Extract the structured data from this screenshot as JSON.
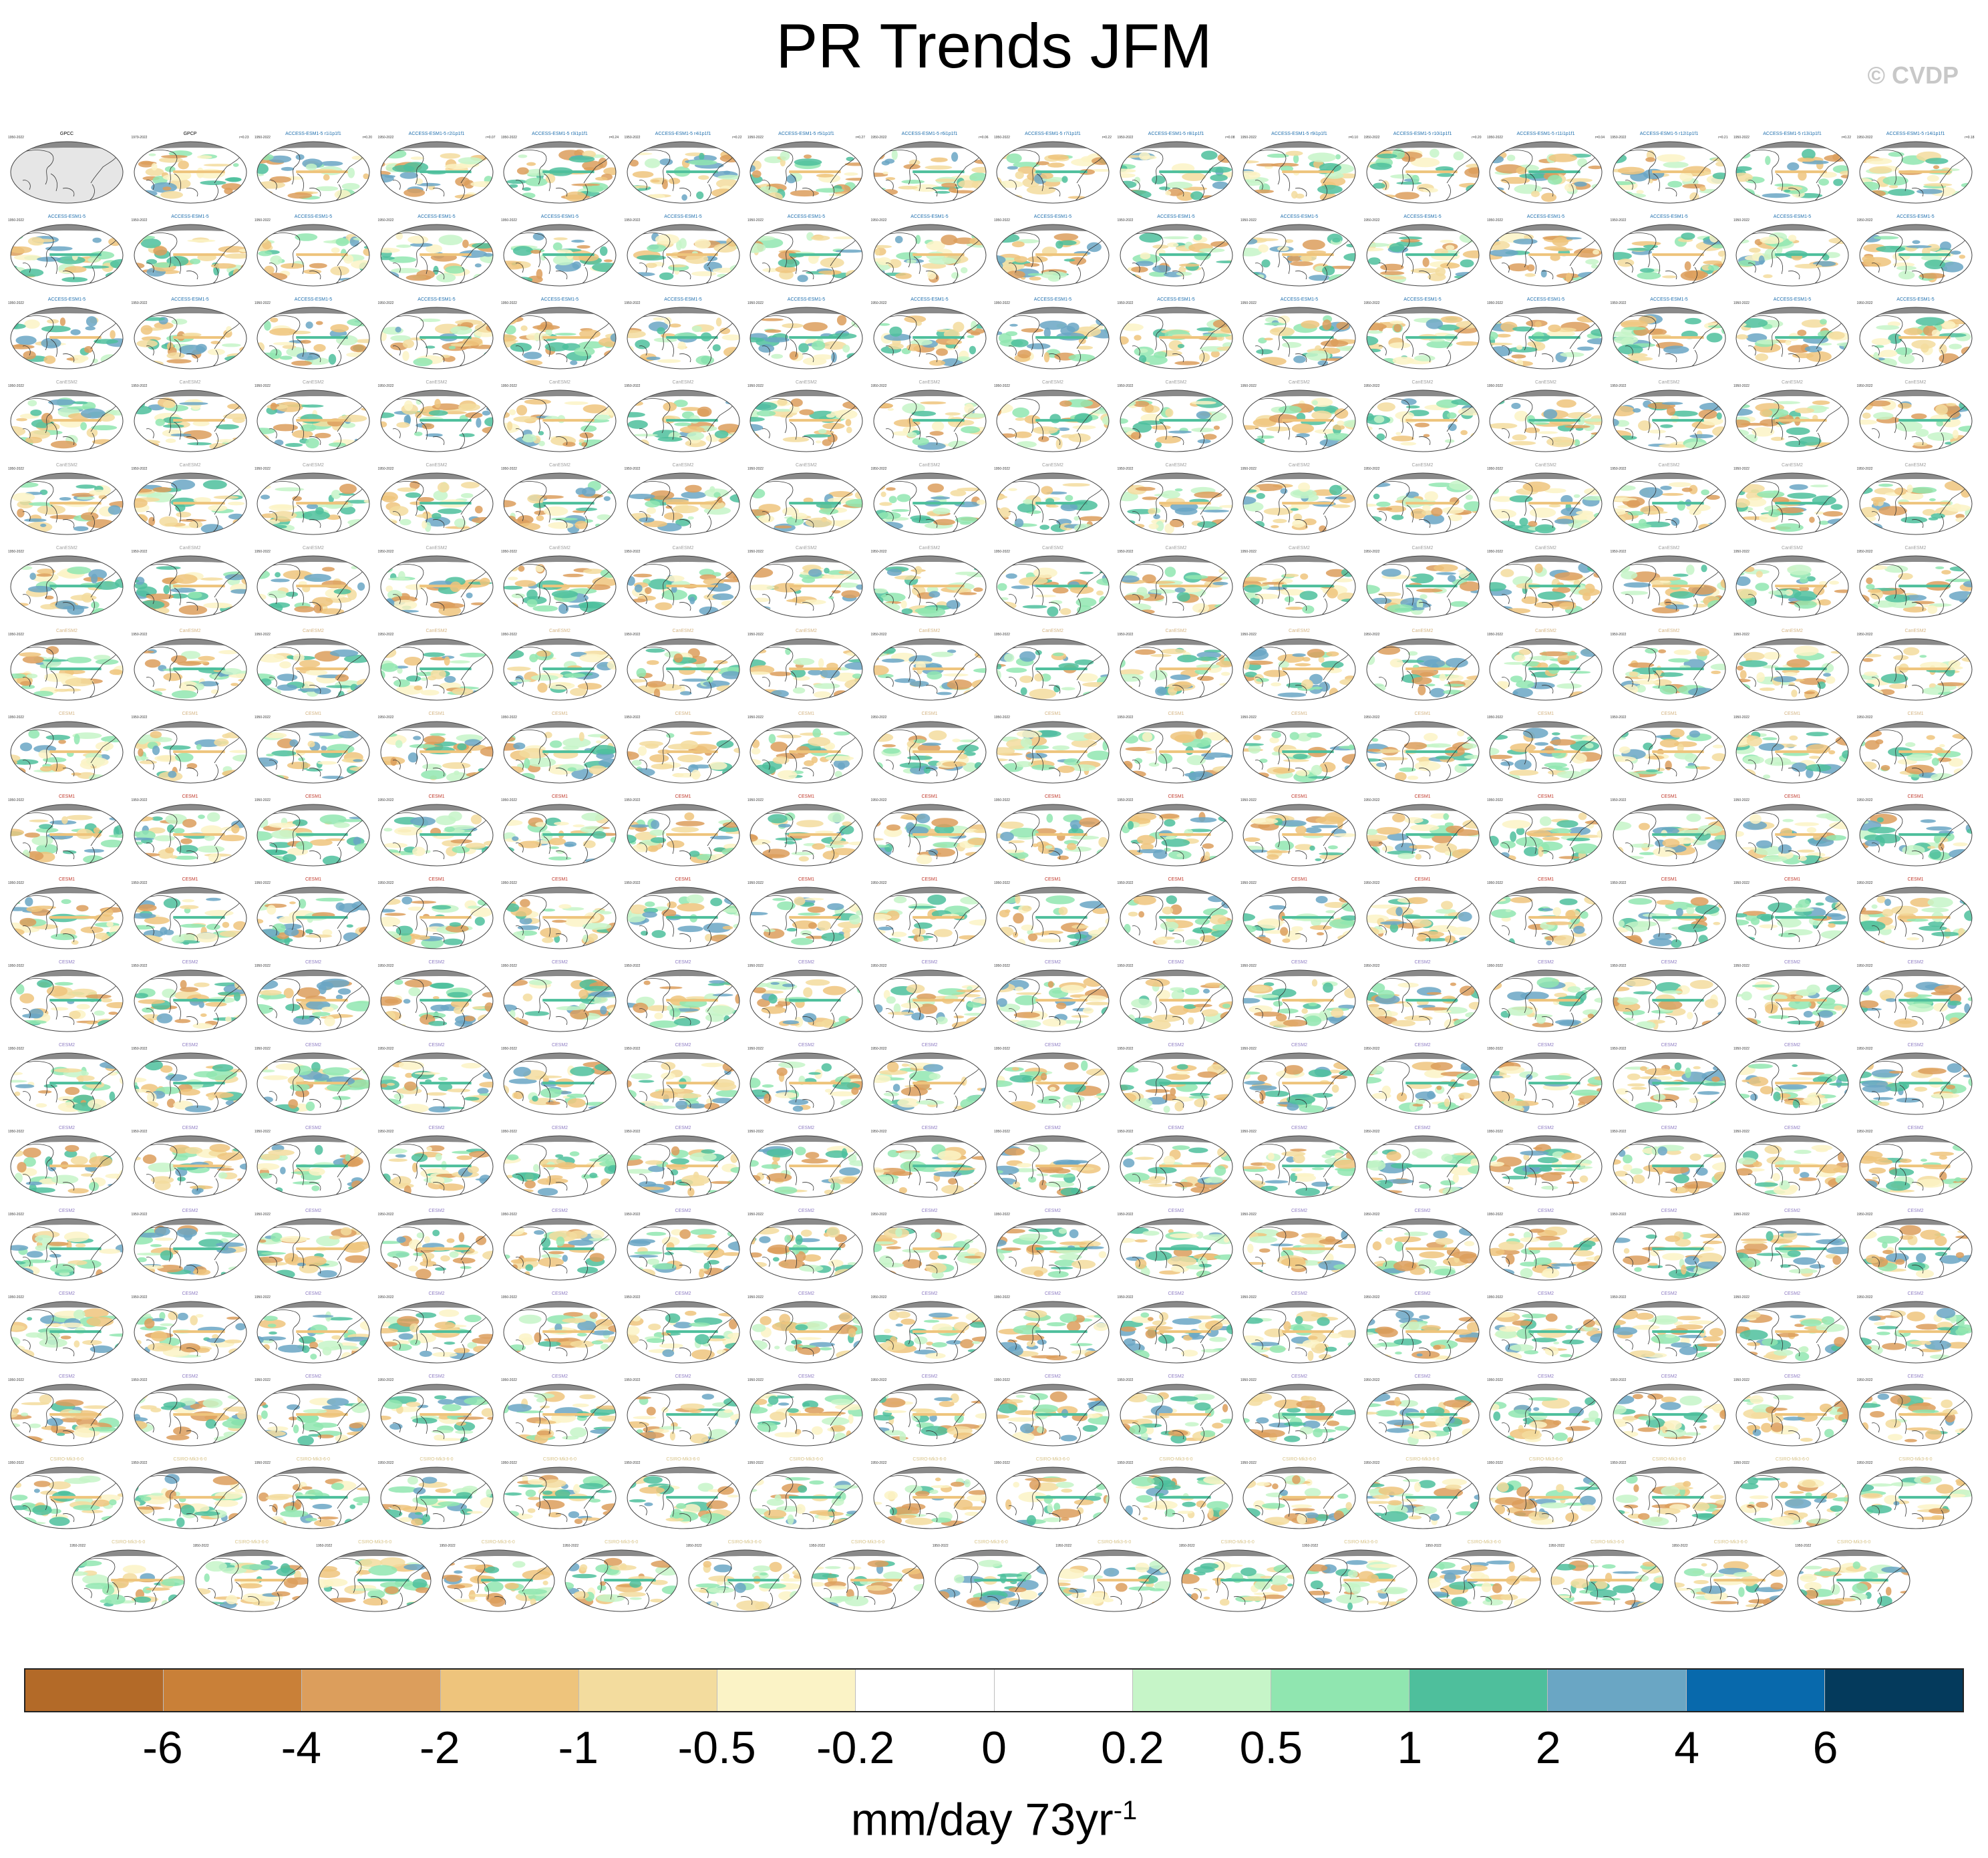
{
  "title": "PR Trends JFM",
  "copyright": "© CVDP",
  "colorbar": {
    "colors": [
      "#b36a28",
      "#c98038",
      "#dc9e5c",
      "#eec47c",
      "#f3dc9e",
      "#fbf3c6",
      "#ffffff",
      "#ffffff",
      "#c6f5c8",
      "#90e6b0",
      "#4ebf9c",
      "#6aa6c4",
      "#0869ac",
      "#043a5c"
    ],
    "labels": [
      "-6",
      "-4",
      "-2",
      "-1",
      "-0.5",
      "-0.2",
      "0",
      "0.2",
      "0.5",
      "1",
      "2",
      "4",
      "6"
    ]
  },
  "units": {
    "text": "mm/day 73yr",
    "superscript": "-1"
  },
  "panel_years": "1950-2022",
  "panels": [
    {
      "title": "GPCC",
      "years": "1950-2022",
      "value": "",
      "color": "#000000",
      "empty": true
    },
    {
      "title": "GPCP",
      "years": "1979-2022",
      "value": "r=0.23",
      "color": "#000000"
    },
    {
      "title": "ACCESS-ESM1-5 r1i1p1f1",
      "value": "r=0.20",
      "color": "#1f6fae"
    },
    {
      "title": "ACCESS-ESM1-5 r2i1p1f1",
      "value": "r=0.07",
      "color": "#1f6fae"
    },
    {
      "title": "ACCESS-ESM1-5 r3i1p1f1",
      "value": "r=0.24",
      "color": "#1f6fae"
    },
    {
      "title": "ACCESS-ESM1-5 r4i1p1f1",
      "value": "r=0.22",
      "color": "#1f6fae"
    },
    {
      "title": "ACCESS-ESM1-5 r5i1p1f1",
      "value": "r=0.27",
      "color": "#1f6fae"
    },
    {
      "title": "ACCESS-ESM1-5 r6i1p1f1",
      "value": "r=0.06",
      "color": "#1f6fae"
    },
    {
      "title": "ACCESS-ESM1-5 r7i1p1f1",
      "value": "r=0.22",
      "color": "#1f6fae"
    },
    {
      "title": "ACCESS-ESM1-5 r8i1p1f1",
      "value": "r=0.08",
      "color": "#1f6fae"
    },
    {
      "title": "ACCESS-ESM1-5 r9i1p1f1",
      "value": "r=0.10",
      "color": "#1f6fae"
    },
    {
      "title": "ACCESS-ESM1-5 r10i1p1f1",
      "value": "r=0.20",
      "color": "#1f6fae"
    },
    {
      "title": "ACCESS-ESM1-5 r11i1p1f1",
      "value": "r=0.04",
      "color": "#1f6fae"
    },
    {
      "title": "ACCESS-ESM1-5 r12i1p1f1",
      "value": "r=0.21",
      "color": "#1f6fae"
    },
    {
      "title": "ACCESS-ESM1-5 r13i1p1f1",
      "value": "r=0.22",
      "color": "#1f6fae"
    },
    {
      "title": "ACCESS-ESM1-5 r14i1p1f1",
      "value": "r=0.18",
      "color": "#1f6fae"
    }
  ],
  "grid": {
    "rows": [
      {
        "label": "ACCESS-ESM1-5",
        "color": "#1f6fae",
        "count": 16
      },
      {
        "label": "ACCESS-ESM1-5",
        "color": "#1f6fae",
        "count": 16
      },
      {
        "label": "CanESM2",
        "color": "#9e9e9e",
        "count": 16
      },
      {
        "label": "CanESM2",
        "color": "#9e9e9e",
        "count": 16
      },
      {
        "label": "CanESM2",
        "color": "#9e9e9e",
        "count": 16
      },
      {
        "label": "CanESM2",
        "color": "#d4b483",
        "count": 16
      },
      {
        "label": "CESM1",
        "color": "#d4b483",
        "count": 16
      },
      {
        "label": "CESM1",
        "color": "#c0392b",
        "count": 16
      },
      {
        "label": "CESM1",
        "color": "#c0392b",
        "count": 16
      },
      {
        "label": "CESM2",
        "color": "#8e7cc3",
        "count": 16
      },
      {
        "label": "CESM2",
        "color": "#8e7cc3",
        "count": 16
      },
      {
        "label": "CESM2",
        "color": "#8e7cc3",
        "count": 16
      },
      {
        "label": "CESM2",
        "color": "#8e7cc3",
        "count": 16
      },
      {
        "label": "CESM2",
        "color": "#8e7cc3",
        "count": 16
      },
      {
        "label": "CESM2",
        "color": "#8e7cc3",
        "count": 16
      },
      {
        "label": "CSIRO-Mk3-6-0",
        "color": "#d8c48a",
        "count": 16
      },
      {
        "label": "CSIRO-Mk3-6-0",
        "color": "#d8c48a",
        "count": 15
      }
    ]
  }
}
